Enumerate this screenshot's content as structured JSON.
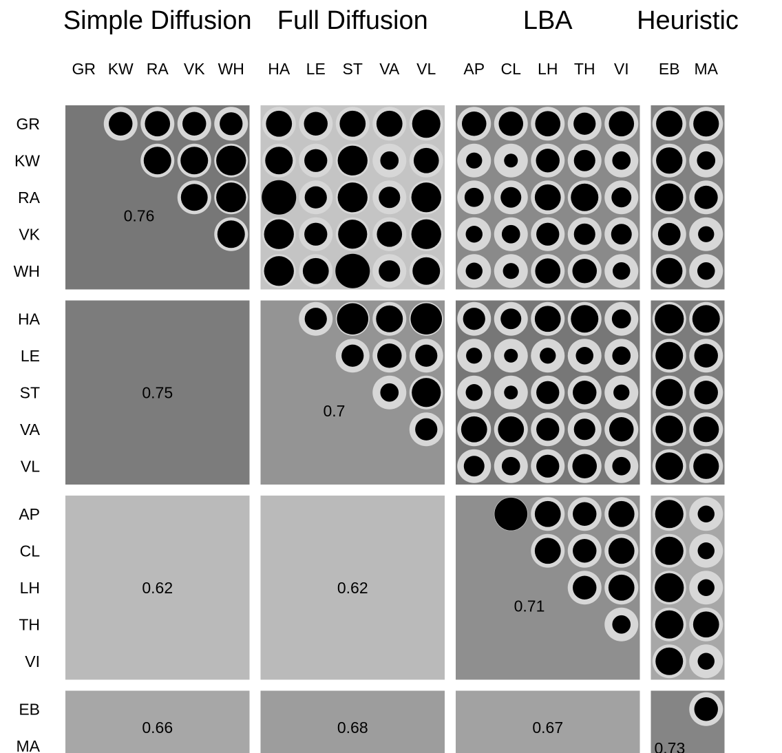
{
  "chart_data": {
    "type": "heatmap",
    "groups": [
      {
        "name": "Simple Diffusion",
        "items": [
          "GR",
          "KW",
          "RA",
          "VK",
          "WH"
        ]
      },
      {
        "name": "Full Diffusion",
        "items": [
          "HA",
          "LE",
          "ST",
          "VA",
          "VL"
        ]
      },
      {
        "name": "LBA",
        "items": [
          "AP",
          "CL",
          "LH",
          "TH",
          "VI"
        ]
      },
      {
        "name": "Heuristic",
        "items": [
          "EB",
          "MA"
        ]
      }
    ],
    "block_values": [
      [
        0.76,
        0.6,
        0.72,
        0.74
      ],
      [
        0.75,
        0.7,
        0.78,
        0.75
      ],
      [
        0.62,
        0.62,
        0.71,
        0.66
      ],
      [
        0.66,
        0.68,
        0.67,
        0.73
      ]
    ],
    "block_labels": [
      [
        "0.76",
        "",
        "",
        ""
      ],
      [
        "0.75",
        "0.7",
        "",
        ""
      ],
      [
        "0.62",
        "0.62",
        "0.71",
        ""
      ],
      [
        "0.66",
        "0.68",
        "0.67",
        "0.73"
      ]
    ],
    "cell_values": [
      [
        null,
        0.7,
        0.74,
        0.7,
        0.68,
        0.76,
        0.7,
        0.76,
        0.76,
        0.82,
        0.72,
        0.72,
        0.74,
        0.66,
        0.74,
        0.77,
        0.75
      ],
      [
        null,
        null,
        0.8,
        0.8,
        0.86,
        0.8,
        0.68,
        0.86,
        0.56,
        0.74,
        0.5,
        0.44,
        0.7,
        0.64,
        0.56,
        0.77,
        0.56
      ],
      [
        null,
        null,
        null,
        0.78,
        0.86,
        0.98,
        0.66,
        0.86,
        0.64,
        0.86,
        0.58,
        0.62,
        0.76,
        0.8,
        0.6,
        0.81,
        0.69
      ],
      [
        null,
        null,
        null,
        null,
        0.8,
        0.86,
        0.68,
        0.84,
        0.74,
        0.86,
        0.52,
        0.56,
        0.68,
        0.64,
        0.62,
        0.67,
        0.5
      ],
      [
        null,
        null,
        null,
        null,
        null,
        0.86,
        0.76,
        0.98,
        0.64,
        0.8,
        0.52,
        0.5,
        0.74,
        0.72,
        0.54,
        0.77,
        0.54
      ],
      [
        null,
        null,
        null,
        null,
        null,
        null,
        0.66,
        0.9,
        0.78,
        0.9,
        0.66,
        0.62,
        0.76,
        0.8,
        0.58,
        0.84,
        0.8
      ],
      [
        null,
        null,
        null,
        null,
        null,
        null,
        null,
        0.66,
        0.72,
        0.66,
        0.5,
        0.44,
        0.5,
        0.54,
        0.56,
        0.8,
        0.7
      ],
      [
        null,
        null,
        null,
        null,
        null,
        null,
        null,
        null,
        0.56,
        0.84,
        0.52,
        0.44,
        0.68,
        0.7,
        0.5,
        0.79,
        0.7
      ],
      [
        null,
        null,
        null,
        null,
        null,
        null,
        null,
        null,
        null,
        0.66,
        0.76,
        0.76,
        0.68,
        0.64,
        0.72,
        0.8,
        0.75
      ],
      [
        null,
        null,
        null,
        null,
        null,
        null,
        null,
        null,
        null,
        null,
        0.62,
        0.56,
        0.68,
        0.72,
        0.56,
        0.8,
        0.75
      ],
      [
        null,
        null,
        null,
        null,
        null,
        null,
        null,
        null,
        null,
        null,
        null,
        0.94,
        0.76,
        0.7,
        0.76,
        0.82,
        0.52
      ],
      [
        null,
        null,
        null,
        null,
        null,
        null,
        null,
        null,
        null,
        null,
        null,
        null,
        0.76,
        0.7,
        0.76,
        0.82,
        0.52
      ],
      [
        null,
        null,
        null,
        null,
        null,
        null,
        null,
        null,
        null,
        null,
        null,
        null,
        null,
        0.7,
        0.76,
        0.84,
        0.52
      ],
      [
        null,
        null,
        null,
        null,
        null,
        null,
        null,
        null,
        null,
        null,
        null,
        null,
        null,
        null,
        0.56,
        0.82,
        0.76
      ],
      [
        null,
        null,
        null,
        null,
        null,
        null,
        null,
        null,
        null,
        null,
        null,
        null,
        null,
        null,
        null,
        0.8,
        0.52
      ],
      [
        null,
        null,
        null,
        null,
        null,
        null,
        null,
        null,
        null,
        null,
        null,
        null,
        null,
        null,
        null,
        null,
        0.7
      ],
      [
        null,
        null,
        null,
        null,
        null,
        null,
        null,
        null,
        null,
        null,
        null,
        null,
        null,
        null,
        null,
        null,
        null
      ]
    ],
    "colors": {
      "high": "#777777",
      "low": "#c4c4c4",
      "ring": "#d7d7d7",
      "dot": "#000000"
    }
  }
}
